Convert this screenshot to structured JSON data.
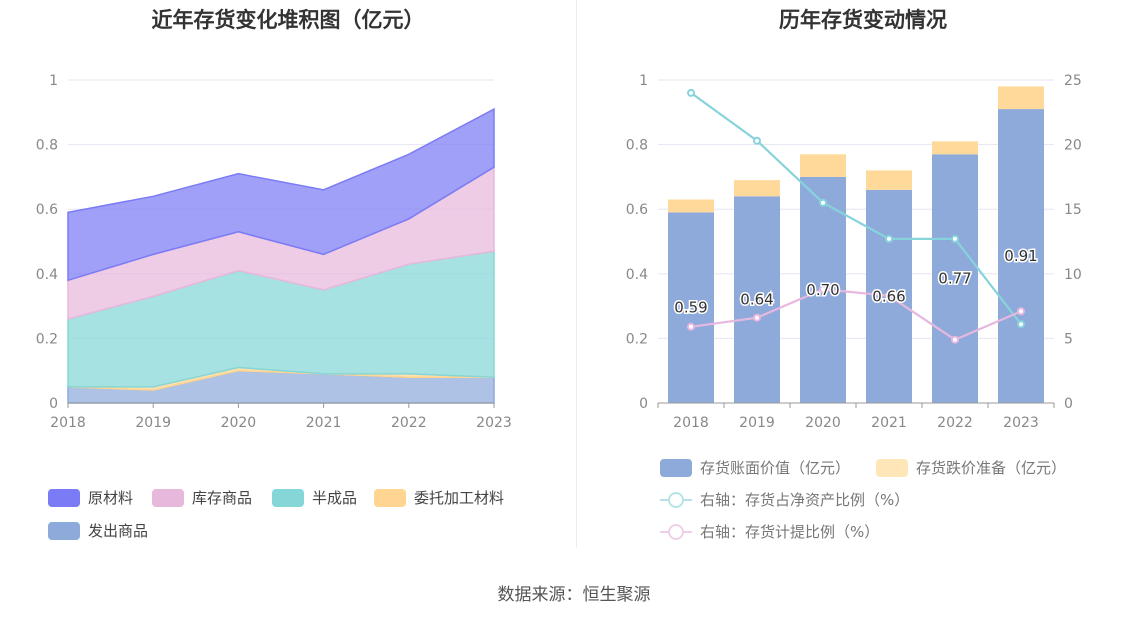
{
  "source_text": "数据来源：恒生聚源",
  "chart_data": [
    {
      "type": "area",
      "stacked": true,
      "title": "近年存货变化堆积图（亿元）",
      "categories": [
        "2018",
        "2019",
        "2020",
        "2021",
        "2022",
        "2023"
      ],
      "ylim": [
        0,
        1
      ],
      "yticks": [
        "0",
        "0.2",
        "0.4",
        "0.6",
        "0.8",
        "1"
      ],
      "series": [
        {
          "name": "发出商品",
          "color": "#8eaadb",
          "values": [
            0.05,
            0.04,
            0.1,
            0.09,
            0.08,
            0.08
          ]
        },
        {
          "name": "委托加工材料",
          "color": "#ffd591",
          "values": [
            0.0,
            0.01,
            0.01,
            0.0,
            0.01,
            0.0
          ]
        },
        {
          "name": "半成品",
          "color": "#85d7d7",
          "values": [
            0.21,
            0.28,
            0.3,
            0.26,
            0.34,
            0.39
          ]
        },
        {
          "name": "库存商品",
          "color": "#e8b8dc",
          "values": [
            0.12,
            0.13,
            0.12,
            0.11,
            0.14,
            0.26
          ]
        },
        {
          "name": "原材料",
          "color": "#7b7cf5",
          "values": [
            0.21,
            0.18,
            0.18,
            0.2,
            0.2,
            0.18
          ]
        }
      ],
      "legend": [
        "原材料",
        "库存商品",
        "半成品",
        "委托加工材料",
        "发出商品"
      ]
    },
    {
      "type": "bar+line",
      "title": "历年存货变动情况",
      "categories": [
        "2018",
        "2019",
        "2020",
        "2021",
        "2022",
        "2023"
      ],
      "ylim": [
        0,
        1
      ],
      "yticks": [
        "0",
        "0.2",
        "0.4",
        "0.6",
        "0.8",
        "1"
      ],
      "y2lim": [
        0,
        25
      ],
      "y2ticks": [
        "0",
        "5",
        "10",
        "15",
        "20",
        "25"
      ],
      "bars": [
        {
          "name": "存货账面价值（亿元）",
          "color": "#8eaadb",
          "values": [
            0.59,
            0.64,
            0.7,
            0.66,
            0.77,
            0.91
          ],
          "labels": [
            "0.59",
            "0.64",
            "0.70",
            "0.66",
            "0.77",
            "0.91"
          ]
        },
        {
          "name": "存货跌价准备（亿元）",
          "color": "#ffd99a",
          "values": [
            0.04,
            0.05,
            0.07,
            0.06,
            0.04,
            0.07
          ]
        }
      ],
      "lines": [
        {
          "name": "右轴：存货占净资产比例（%）",
          "color": "#87d3db",
          "values": [
            24.0,
            20.3,
            15.5,
            12.7,
            12.7,
            6.1
          ]
        },
        {
          "name": "右轴：存货计提比例（%）",
          "color": "#e6b8df",
          "values": [
            5.9,
            6.6,
            8.8,
            8.3,
            4.9,
            7.1
          ]
        }
      ]
    }
  ]
}
